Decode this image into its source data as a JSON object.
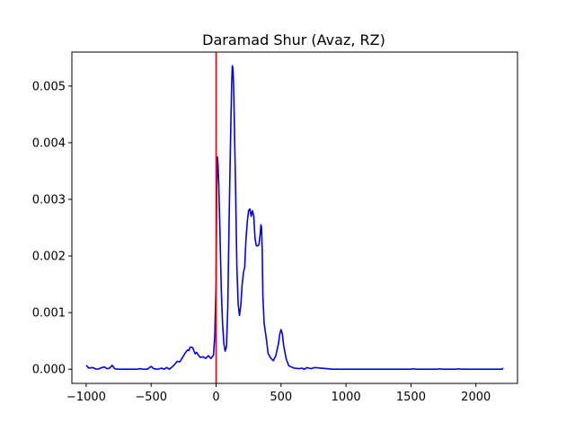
{
  "chart_data": {
    "type": "line",
    "title": "Daramad Shur (Avaz, RZ)",
    "xlabel": "",
    "ylabel": "",
    "xlim": [
      -1110,
      2320
    ],
    "ylim": [
      -0.00025,
      0.0056
    ],
    "x_ticks": [
      -1000,
      -500,
      0,
      500,
      1000,
      1500,
      2000
    ],
    "x_tick_labels": [
      "−1000",
      "−500",
      "0",
      "500",
      "1000",
      "1500",
      "2000"
    ],
    "y_ticks": [
      0.0,
      0.001,
      0.002,
      0.003,
      0.004,
      0.005
    ],
    "y_tick_labels": [
      "0.000",
      "0.001",
      "0.002",
      "0.003",
      "0.004",
      "0.005"
    ],
    "grid": false,
    "series": [
      {
        "color": "#0000ff",
        "x": [
          -1000,
          -980,
          -950,
          -920,
          -900,
          -880,
          -860,
          -840,
          -820,
          -800,
          -780,
          -760,
          -700,
          -650,
          -610,
          -580,
          -560,
          -530,
          -500,
          -480,
          -450,
          -420,
          -400,
          -380,
          -360,
          -340,
          -320,
          -300,
          -280,
          -260,
          -240,
          -230,
          -220,
          -210,
          -200,
          -190,
          -180,
          -170,
          -160,
          -150,
          -140,
          -130,
          -120,
          -100,
          -80,
          -60,
          -40,
          -20,
          -10,
          0,
          5,
          10,
          15,
          20,
          30,
          40,
          50,
          60,
          70,
          80,
          90,
          100,
          110,
          120,
          125,
          130,
          135,
          140,
          150,
          160,
          170,
          180,
          190,
          200,
          210,
          220,
          230,
          240,
          250,
          260,
          270,
          280,
          290,
          300,
          310,
          320,
          330,
          340,
          345,
          350,
          355,
          360,
          370,
          380,
          390,
          400,
          420,
          440,
          460,
          470,
          480,
          490,
          500,
          510,
          520,
          530,
          540,
          560,
          600,
          640,
          660,
          680,
          700,
          730,
          760,
          800,
          850,
          900,
          1000,
          1200,
          1400,
          1500,
          1520,
          1540,
          1600,
          1700,
          1720,
          1740,
          1800,
          1850,
          1870,
          1890,
          1950,
          2000,
          2100,
          2180,
          2200,
          2210
        ],
        "y": [
          7e-05,
          2e-05,
          3e-05,
          0.0,
          1e-05,
          3e-05,
          4e-05,
          1e-05,
          2e-05,
          7e-05,
          1e-05,
          0.0,
          0.0,
          0.0,
          0.0,
          1e-05,
          0.0,
          0.0,
          5e-05,
          1e-05,
          0.0,
          2e-05,
          0.0,
          3e-05,
          0.0,
          4e-05,
          8e-05,
          0.00014,
          0.00013,
          0.0002,
          0.00028,
          0.00031,
          0.00034,
          0.00033,
          0.00039,
          0.00039,
          0.00038,
          0.00032,
          0.00027,
          0.0003,
          0.00026,
          0.00023,
          0.00021,
          0.00022,
          0.00019,
          0.00024,
          0.00019,
          0.00025,
          0.0006,
          0.00155,
          0.0032,
          0.00375,
          0.0036,
          0.0033,
          0.0024,
          0.0014,
          0.0008,
          0.00045,
          0.00032,
          0.0004,
          0.0011,
          0.0026,
          0.0039,
          0.00505,
          0.00536,
          0.0053,
          0.005,
          0.0044,
          0.0032,
          0.0018,
          0.00115,
          0.00095,
          0.00112,
          0.00148,
          0.0017,
          0.0018,
          0.0023,
          0.0026,
          0.0028,
          0.00283,
          0.0027,
          0.0028,
          0.0027,
          0.0023,
          0.00218,
          0.00218,
          0.0022,
          0.0024,
          0.00255,
          0.0025,
          0.0021,
          0.0013,
          0.0008,
          0.00065,
          0.00048,
          0.00028,
          0.0002,
          0.00015,
          0.00024,
          0.00035,
          0.00045,
          0.00062,
          0.0007,
          0.00062,
          0.00042,
          0.0003,
          0.00018,
          6e-05,
          2e-05,
          1e-05,
          2e-05,
          0.0,
          3e-05,
          1e-05,
          3e-05,
          2e-05,
          1e-05,
          0.0,
          0.0,
          0.0,
          0.0,
          0.0,
          1e-05,
          0.0,
          0.0,
          0.0,
          1e-05,
          0.0,
          0.0,
          0.0,
          1e-05,
          0.0,
          0.0,
          0.0,
          0.0,
          0.0,
          0.0,
          2e-05
        ]
      }
    ],
    "vlines": [
      {
        "x": 0,
        "color": "#ff0000"
      }
    ]
  }
}
